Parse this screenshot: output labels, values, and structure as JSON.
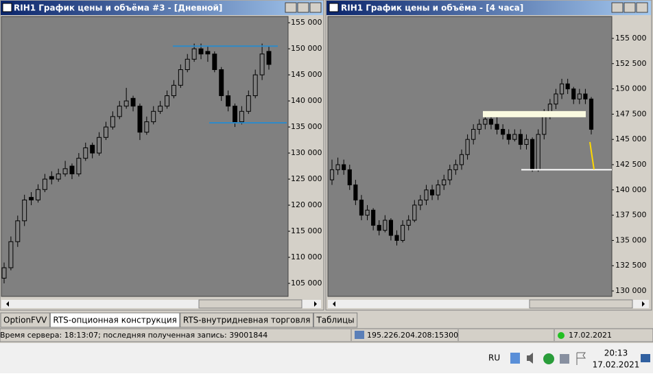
{
  "chart_data": [
    {
      "type": "candlestick",
      "title": "RIH1 График цены и объёма #3 - [Дневной]",
      "ylim": [
        102500,
        156200
      ],
      "yticks": [
        {
          "value": 105000,
          "label": "105 000"
        },
        {
          "value": 110000,
          "label": "110 000"
        },
        {
          "value": 115000,
          "label": "115 000"
        },
        {
          "value": 120000,
          "label": "120 000"
        },
        {
          "value": 125000,
          "label": "125 000"
        },
        {
          "value": 130000,
          "label": "130 000"
        },
        {
          "value": 135000,
          "label": "135 000"
        },
        {
          "value": 140000,
          "label": "140 000"
        },
        {
          "value": 145000,
          "label": "145 000"
        },
        {
          "value": 150000,
          "label": "150 000"
        },
        {
          "value": 155000,
          "label": "155 000"
        }
      ],
      "color": "#000000",
      "background": "#808080",
      "levels": [
        {
          "value": 150500,
          "color": "#2e8ac8"
        },
        {
          "value": 135800,
          "color": "#2e8ac8"
        }
      ],
      "candles": [
        [
          106000,
          109000,
          105000,
          108000
        ],
        [
          108000,
          114000,
          107500,
          113000
        ],
        [
          113000,
          118000,
          112000,
          117000
        ],
        [
          117000,
          122000,
          116000,
          121000
        ],
        [
          121500,
          122500,
          120000,
          121000
        ],
        [
          121000,
          124000,
          120500,
          123000
        ],
        [
          123000,
          126000,
          122500,
          125000
        ],
        [
          125500,
          126500,
          124000,
          125000
        ],
        [
          125000,
          127000,
          124500,
          126000
        ],
        [
          126000,
          128500,
          125500,
          127000
        ],
        [
          127500,
          128000,
          125000,
          126000
        ],
        [
          126000,
          130000,
          125500,
          129000
        ],
        [
          129000,
          132000,
          128500,
          131000
        ],
        [
          131500,
          132000,
          129000,
          130000
        ],
        [
          130000,
          134000,
          129500,
          133000
        ],
        [
          133000,
          136000,
          132500,
          135000
        ],
        [
          135000,
          138000,
          134500,
          137000
        ],
        [
          137000,
          140000,
          136500,
          139000
        ],
        [
          139000,
          142500,
          138500,
          140000
        ],
        [
          140500,
          141000,
          138000,
          139000
        ],
        [
          139000,
          139500,
          132500,
          134000
        ],
        [
          134000,
          137000,
          133500,
          136000
        ],
        [
          136000,
          139000,
          135500,
          138000
        ],
        [
          138000,
          140000,
          137500,
          139000
        ],
        [
          139000,
          142000,
          138500,
          141000
        ],
        [
          141000,
          144000,
          140500,
          143000
        ],
        [
          143000,
          147000,
          142500,
          146000
        ],
        [
          146000,
          149000,
          145500,
          148000
        ],
        [
          148000,
          151000,
          147500,
          150000
        ],
        [
          150000,
          151000,
          148000,
          149000
        ],
        [
          149500,
          150500,
          147500,
          149000
        ],
        [
          149000,
          149500,
          145500,
          146000
        ],
        [
          146000,
          146500,
          140000,
          141000
        ],
        [
          141000,
          142000,
          138000,
          139000
        ],
        [
          139000,
          139500,
          135000,
          136000
        ],
        [
          136000,
          139000,
          135500,
          138000
        ],
        [
          138000,
          142000,
          137500,
          141000
        ],
        [
          141000,
          146000,
          140500,
          145000
        ],
        [
          145000,
          151000,
          144000,
          149000
        ],
        [
          149500,
          150500,
          146000,
          147000
        ]
      ]
    },
    {
      "type": "candlestick",
      "title": "RIH1 График цены и объёма - [4 часа]",
      "ylim": [
        129460,
        157170
      ],
      "yticks": [
        {
          "value": 130000,
          "label": "130 000"
        },
        {
          "value": 132500,
          "label": "132 500"
        },
        {
          "value": 135000,
          "label": "135 000"
        },
        {
          "value": 137500,
          "label": "137 500"
        },
        {
          "value": 140000,
          "label": "140 000"
        },
        {
          "value": 142500,
          "label": "142 500"
        },
        {
          "value": 145000,
          "label": "145 000"
        },
        {
          "value": 147500,
          "label": "147 500"
        },
        {
          "value": 150000,
          "label": "150 000"
        },
        {
          "value": 152500,
          "label": "152 500"
        },
        {
          "value": 155000,
          "label": "155 000"
        }
      ],
      "color": "#000000",
      "background": "#808080",
      "levels": [
        {
          "value": 147500,
          "color": "#fafae0"
        },
        {
          "value": 142000,
          "color": "#ffffff"
        }
      ],
      "candles": [
        [
          141000,
          143000,
          140500,
          142000
        ],
        [
          142000,
          143200,
          141500,
          142500
        ],
        [
          142500,
          143000,
          141500,
          142000
        ],
        [
          142000,
          142500,
          140000,
          140500
        ],
        [
          140500,
          141000,
          138500,
          139000
        ],
        [
          139000,
          139500,
          137000,
          137500
        ],
        [
          137500,
          138500,
          137000,
          138000
        ],
        [
          138000,
          138200,
          136000,
          136500
        ],
        [
          136500,
          137000,
          135500,
          136000
        ],
        [
          136000,
          137500,
          135800,
          137000
        ],
        [
          137000,
          137200,
          135000,
          135500
        ],
        [
          135500,
          136000,
          134500,
          135000
        ],
        [
          135000,
          137000,
          134800,
          136500
        ],
        [
          136500,
          137500,
          136000,
          137000
        ],
        [
          137000,
          139000,
          136800,
          138500
        ],
        [
          138500,
          139500,
          138000,
          139000
        ],
        [
          139000,
          140500,
          138500,
          140000
        ],
        [
          140000,
          140500,
          139000,
          139500
        ],
        [
          139500,
          141000,
          139000,
          140500
        ],
        [
          140500,
          141500,
          140000,
          141000
        ],
        [
          141000,
          142500,
          140500,
          142000
        ],
        [
          142000,
          143000,
          141500,
          142500
        ],
        [
          142500,
          144000,
          142000,
          143500
        ],
        [
          143500,
          145500,
          143000,
          145000
        ],
        [
          145000,
          146500,
          144500,
          146000
        ],
        [
          146000,
          147000,
          145500,
          146500
        ],
        [
          146500,
          147500,
          146000,
          147000
        ],
        [
          147000,
          147500,
          146000,
          146500
        ],
        [
          146500,
          147200,
          145500,
          146000
        ],
        [
          146000,
          146500,
          145000,
          145500
        ],
        [
          145500,
          146000,
          144500,
          145000
        ],
        [
          145000,
          146000,
          144800,
          145500
        ],
        [
          145500,
          146000,
          144000,
          144500
        ],
        [
          144500,
          145500,
          144000,
          145000
        ],
        [
          145000,
          145200,
          141800,
          142000
        ],
        [
          142000,
          146000,
          141800,
          145500
        ],
        [
          145500,
          148000,
          145000,
          147500
        ],
        [
          147500,
          149000,
          147000,
          148500
        ],
        [
          148500,
          150000,
          148000,
          149500
        ],
        [
          149500,
          151000,
          149000,
          150500
        ],
        [
          150500,
          151000,
          149500,
          150000
        ],
        [
          150000,
          150200,
          148500,
          149000
        ],
        [
          149000,
          150000,
          148500,
          149500
        ],
        [
          149500,
          150000,
          148500,
          149000
        ],
        [
          149000,
          149200,
          145500,
          146000
        ]
      ]
    }
  ],
  "tabs": [
    "OptionFVV",
    "RTS-опционная конструкция",
    "RTS-внутридневная торговля",
    "Таблицы"
  ],
  "status": {
    "server": "Время сервера: 18:13:07; последняя полученная запись: 39001844",
    "address": "195.226.204.208:15300",
    "date": "17.02.2021"
  },
  "taskbar": {
    "language": "RU",
    "time": "20:13",
    "date": "17.02.2021"
  }
}
